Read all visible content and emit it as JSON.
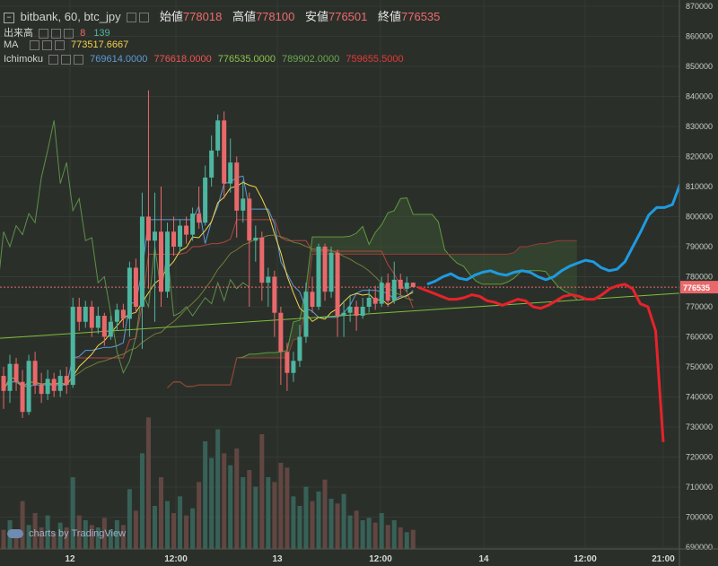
{
  "header": {
    "symbol": "bitbank, 60, btc_jpy",
    "open_label": "始値",
    "open": "778018",
    "high_label": "高値",
    "high": "778100",
    "low_label": "安値",
    "low": "776501",
    "close_label": "終値",
    "close": "776535"
  },
  "indicators": {
    "volume": {
      "label": "出来高",
      "v1": "8",
      "v2": "139"
    },
    "ma": {
      "label": "MA",
      "value": "773517.6667",
      "color": "#f2d34d"
    },
    "ichimoku": {
      "label": "Ichimoku",
      "values": [
        "769614.0000",
        "776618.0000",
        "776535.0000",
        "789902.0000",
        "759655.5000"
      ],
      "colors": [
        "#5b9bd5",
        "#ef5350",
        "#8bc34a",
        "#6aa84f",
        "#e53935"
      ]
    }
  },
  "watermark": "charts by TradingView",
  "chart_data": {
    "type": "candlestick",
    "ylim": [
      690000,
      870000
    ],
    "yticks": [
      690000,
      700000,
      710000,
      720000,
      730000,
      740000,
      750000,
      760000,
      770000,
      780000,
      790000,
      800000,
      810000,
      820000,
      830000,
      840000,
      850000,
      860000,
      870000
    ],
    "ytick_labels": [
      "690000",
      "700000",
      "710000",
      "720000",
      "730000",
      "740000",
      "750000",
      "760000",
      "770000",
      "780000",
      "790000",
      "800000",
      "810000",
      "820000",
      "830000",
      "840000",
      "850000",
      "860000",
      "870000"
    ],
    "current_price": 776535,
    "current_price_label": "776535",
    "xtick_labels": [
      "12",
      "12:00",
      "13",
      "12:00",
      "14",
      "12:00",
      "21:00"
    ],
    "colors": {
      "up": "#4db6a0",
      "down": "#e8696b",
      "blue_forecast": "#1e9be0",
      "red_forecast": "#e8222b"
    },
    "candles": [
      {
        "o": 747000,
        "c": 742000,
        "h": 750000,
        "l": 736000
      },
      {
        "o": 742000,
        "c": 751000,
        "h": 754000,
        "l": 738000
      },
      {
        "o": 751000,
        "c": 745000,
        "h": 753000,
        "l": 742000
      },
      {
        "o": 745000,
        "c": 735000,
        "h": 749000,
        "l": 733000
      },
      {
        "o": 735000,
        "c": 752000,
        "h": 754000,
        "l": 734000
      },
      {
        "o": 752000,
        "c": 744000,
        "h": 755000,
        "l": 741000
      },
      {
        "o": 744000,
        "c": 741000,
        "h": 748000,
        "l": 738000
      },
      {
        "o": 741000,
        "c": 746000,
        "h": 749000,
        "l": 739000
      },
      {
        "o": 746000,
        "c": 742000,
        "h": 748000,
        "l": 740000
      },
      {
        "o": 742000,
        "c": 747000,
        "h": 749000,
        "l": 740000
      },
      {
        "o": 747000,
        "c": 744000,
        "h": 750000,
        "l": 741000
      },
      {
        "o": 744000,
        "c": 770000,
        "h": 773000,
        "l": 743000
      },
      {
        "o": 770000,
        "c": 765000,
        "h": 773000,
        "l": 762000
      },
      {
        "o": 765000,
        "c": 770000,
        "h": 772000,
        "l": 763000
      },
      {
        "o": 770000,
        "c": 763000,
        "h": 772000,
        "l": 760000
      },
      {
        "o": 763000,
        "c": 767000,
        "h": 770000,
        "l": 761000
      },
      {
        "o": 767000,
        "c": 760000,
        "h": 768000,
        "l": 757000
      },
      {
        "o": 760000,
        "c": 765000,
        "h": 767000,
        "l": 759000
      },
      {
        "o": 765000,
        "c": 769000,
        "h": 771000,
        "l": 762000
      },
      {
        "o": 769000,
        "c": 766000,
        "h": 771000,
        "l": 763000
      },
      {
        "o": 766000,
        "c": 783000,
        "h": 785000,
        "l": 760000
      },
      {
        "o": 783000,
        "c": 770000,
        "h": 786000,
        "l": 768000
      },
      {
        "o": 770000,
        "c": 800000,
        "h": 808000,
        "l": 756000
      },
      {
        "o": 800000,
        "c": 792000,
        "h": 842000,
        "l": 776000
      },
      {
        "o": 792000,
        "c": 795000,
        "h": 808000,
        "l": 765000
      },
      {
        "o": 795000,
        "c": 775000,
        "h": 810000,
        "l": 770000
      },
      {
        "o": 775000,
        "c": 795000,
        "h": 798000,
        "l": 773000
      },
      {
        "o": 795000,
        "c": 790000,
        "h": 800000,
        "l": 787000
      },
      {
        "o": 790000,
        "c": 797000,
        "h": 799000,
        "l": 788000
      },
      {
        "o": 797000,
        "c": 794000,
        "h": 800000,
        "l": 791000
      },
      {
        "o": 794000,
        "c": 801000,
        "h": 803000,
        "l": 792000
      },
      {
        "o": 801000,
        "c": 798000,
        "h": 810000,
        "l": 796000
      },
      {
        "o": 798000,
        "c": 813000,
        "h": 817000,
        "l": 797000
      },
      {
        "o": 813000,
        "c": 822000,
        "h": 827000,
        "l": 810000
      },
      {
        "o": 822000,
        "c": 832000,
        "h": 834000,
        "l": 820000
      },
      {
        "o": 832000,
        "c": 811000,
        "h": 835000,
        "l": 806000
      },
      {
        "o": 811000,
        "c": 818000,
        "h": 826000,
        "l": 808000
      },
      {
        "o": 818000,
        "c": 802000,
        "h": 820000,
        "l": 793000
      },
      {
        "o": 802000,
        "c": 806000,
        "h": 812000,
        "l": 798000
      },
      {
        "o": 806000,
        "c": 792000,
        "h": 808000,
        "l": 770000
      },
      {
        "o": 792000,
        "c": 793000,
        "h": 797000,
        "l": 785000
      },
      {
        "o": 793000,
        "c": 778000,
        "h": 795000,
        "l": 772000
      },
      {
        "o": 778000,
        "c": 780000,
        "h": 783000,
        "l": 770000
      },
      {
        "o": 780000,
        "c": 768000,
        "h": 782000,
        "l": 760000
      },
      {
        "o": 768000,
        "c": 755000,
        "h": 770000,
        "l": 744000
      },
      {
        "o": 755000,
        "c": 748000,
        "h": 758000,
        "l": 742000
      },
      {
        "o": 748000,
        "c": 752000,
        "h": 755000,
        "l": 745000
      },
      {
        "o": 752000,
        "c": 760000,
        "h": 764000,
        "l": 750000
      },
      {
        "o": 760000,
        "c": 775000,
        "h": 778000,
        "l": 758000
      },
      {
        "o": 775000,
        "c": 770000,
        "h": 780000,
        "l": 768000
      },
      {
        "o": 770000,
        "c": 790000,
        "h": 791000,
        "l": 769000
      },
      {
        "o": 790000,
        "c": 775000,
        "h": 791000,
        "l": 772000
      },
      {
        "o": 775000,
        "c": 788000,
        "h": 790000,
        "l": 773000
      },
      {
        "o": 788000,
        "c": 767000,
        "h": 789000,
        "l": 760000
      },
      {
        "o": 767000,
        "c": 768000,
        "h": 772000,
        "l": 760000
      },
      {
        "o": 768000,
        "c": 770000,
        "h": 774000,
        "l": 765000
      },
      {
        "o": 770000,
        "c": 767000,
        "h": 772000,
        "l": 762000
      },
      {
        "o": 767000,
        "c": 770000,
        "h": 773000,
        "l": 766000
      },
      {
        "o": 770000,
        "c": 773000,
        "h": 776000,
        "l": 768000
      },
      {
        "o": 773000,
        "c": 771000,
        "h": 777000,
        "l": 769000
      },
      {
        "o": 771000,
        "c": 778000,
        "h": 780000,
        "l": 770000
      },
      {
        "o": 778000,
        "c": 772000,
        "h": 781000,
        "l": 770000
      },
      {
        "o": 772000,
        "c": 779000,
        "h": 785000,
        "l": 771000
      },
      {
        "o": 779000,
        "c": 776000,
        "h": 781000,
        "l": 774000
      },
      {
        "o": 776000,
        "c": 778000,
        "h": 780000,
        "l": 775000
      },
      {
        "o": 778000,
        "c": 776535,
        "h": 778100,
        "l": 776501
      }
    ],
    "volumes": [
      8,
      12,
      6,
      20,
      10,
      15,
      9,
      14,
      7,
      11,
      9,
      30,
      14,
      12,
      10,
      9,
      13,
      8,
      12,
      10,
      25,
      16,
      40,
      55,
      18,
      30,
      20,
      15,
      22,
      14,
      17,
      28,
      45,
      38,
      50,
      40,
      35,
      42,
      30,
      33,
      26,
      48,
      30,
      28,
      36,
      34,
      22,
      18,
      26,
      20,
      24,
      29,
      21,
      19,
      23,
      14,
      16,
      12,
      13,
      11,
      15,
      10,
      12,
      9,
      7,
      8
    ],
    "blue_forecast": [
      777500,
      778500,
      780000,
      781000,
      779500,
      779000,
      780500,
      781500,
      782000,
      781000,
      780500,
      781500,
      782000,
      781500,
      780000,
      779000,
      780000,
      782000,
      783500,
      784500,
      785500,
      785000,
      783000,
      782000,
      782500,
      785000,
      790000,
      795000,
      800500,
      803000,
      803000,
      804000,
      811000
    ],
    "red_forecast": [
      776500,
      775500,
      774500,
      773500,
      772500,
      772500,
      773000,
      774000,
      773500,
      772000,
      771500,
      770500,
      771500,
      772500,
      772000,
      770000,
      769500,
      770500,
      772000,
      773500,
      774000,
      773500,
      772500,
      772500,
      774000,
      776000,
      777000,
      777500,
      776000,
      771000,
      770000,
      762000,
      725000
    ]
  }
}
